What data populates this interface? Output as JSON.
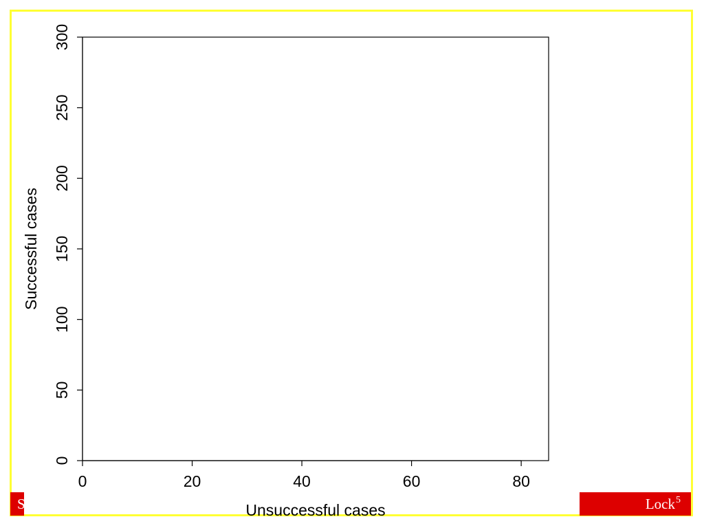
{
  "chart_data": {
    "type": "scatter",
    "xlabel": "Unsuccessful cases",
    "ylabel": "Successful cases",
    "x": [],
    "values": [],
    "xlim": [
      0,
      85
    ],
    "xticks": [
      0,
      20,
      40,
      60,
      80
    ],
    "ylim": [
      0,
      300
    ],
    "yticks": [
      0,
      50,
      100,
      150,
      200,
      250,
      300
    ]
  },
  "footer": {
    "left": "S",
    "right": "Lock",
    "right_superscript": "5"
  }
}
